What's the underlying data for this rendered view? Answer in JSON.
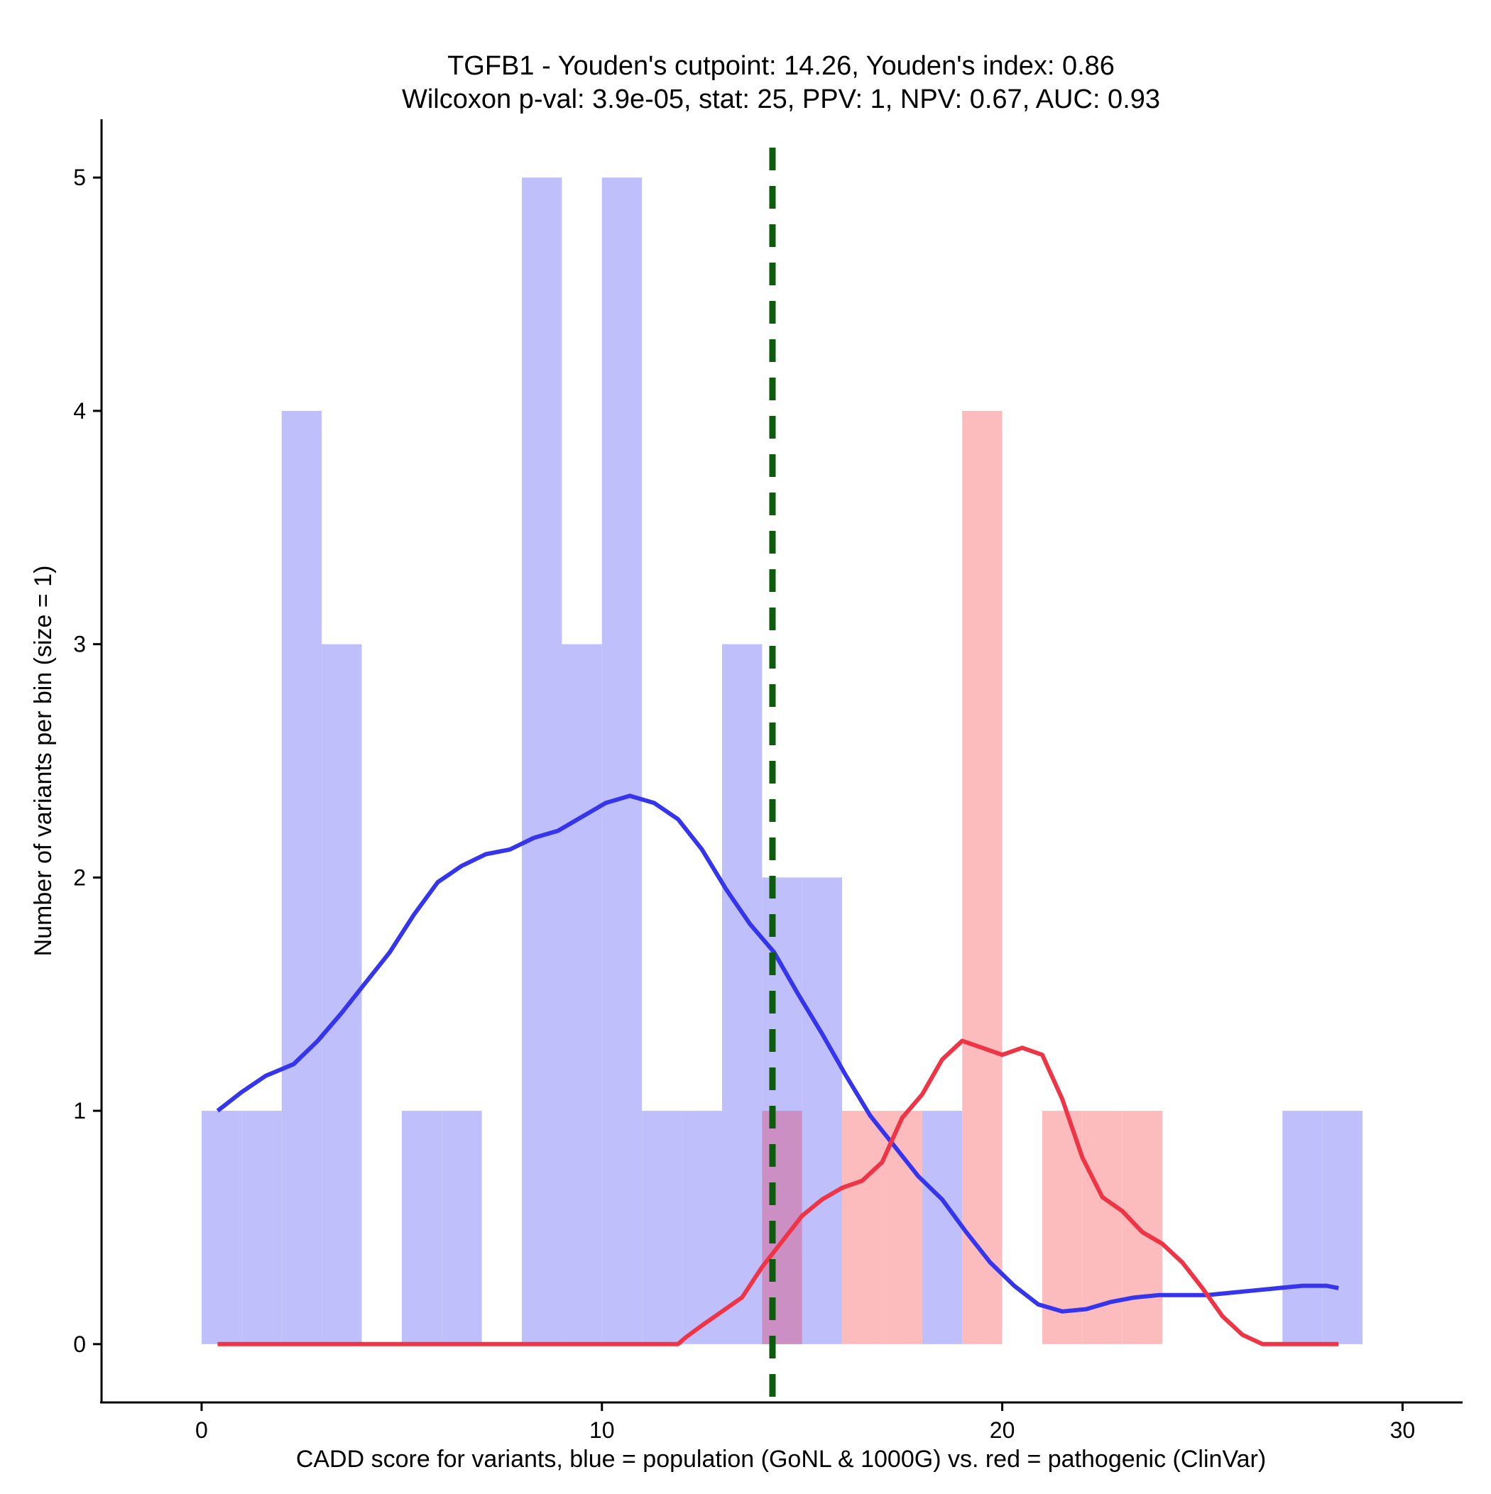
{
  "chart_data": {
    "type": "histogram",
    "title_lines": [
      "TGFB1 - Youden's cutpoint: 14.26, Youden's index: 0.86",
      "Wilcoxon p-val: 3.9e-05, stat: 25, PPV: 1, NPV: 0.67, AUC: 0.93"
    ],
    "xlabel": "CADD score for variants, blue = population (GoNL & 1000G) vs. red = pathogenic (ClinVar)",
    "ylabel": "Number of variants per bin (size = 1)",
    "xlim": [
      -2.5,
      31.5
    ],
    "ylim": [
      -0.25,
      5.25
    ],
    "x_ticks": [
      0,
      10,
      20,
      30
    ],
    "y_ticks": [
      0,
      1,
      2,
      3,
      4,
      5
    ],
    "bin_width": 1,
    "cutpoint": 14.26,
    "colors": {
      "population_bar": "#bfbffb",
      "pathogenic_bar": "#fcbcbe",
      "overlap_bar": "#cc8fc4",
      "population_line": "#3535ee",
      "pathogenic_line": "#ef3545",
      "cutpoint_line": "#0d5c0d"
    },
    "series": [
      {
        "name": "population",
        "bins": [
          {
            "start": 0,
            "count": 1
          },
          {
            "start": 1,
            "count": 1
          },
          {
            "start": 2,
            "count": 4
          },
          {
            "start": 3,
            "count": 3
          },
          {
            "start": 5,
            "count": 1
          },
          {
            "start": 6,
            "count": 1
          },
          {
            "start": 8,
            "count": 5
          },
          {
            "start": 9,
            "count": 3
          },
          {
            "start": 10,
            "count": 5
          },
          {
            "start": 11,
            "count": 1
          },
          {
            "start": 12,
            "count": 1
          },
          {
            "start": 13,
            "count": 3
          },
          {
            "start": 14,
            "count": 2
          },
          {
            "start": 15,
            "count": 2
          },
          {
            "start": 18,
            "count": 1
          },
          {
            "start": 27,
            "count": 1
          },
          {
            "start": 28,
            "count": 1
          }
        ],
        "density": [
          [
            0.4,
            1.0
          ],
          [
            1.0,
            1.08
          ],
          [
            1.6,
            1.15
          ],
          [
            2.3,
            1.2
          ],
          [
            2.9,
            1.3
          ],
          [
            3.5,
            1.42
          ],
          [
            4.1,
            1.55
          ],
          [
            4.7,
            1.68
          ],
          [
            5.3,
            1.84
          ],
          [
            5.9,
            1.98
          ],
          [
            6.5,
            2.05
          ],
          [
            7.1,
            2.1
          ],
          [
            7.7,
            2.12
          ],
          [
            8.3,
            2.17
          ],
          [
            8.9,
            2.2
          ],
          [
            9.5,
            2.26
          ],
          [
            10.1,
            2.32
          ],
          [
            10.7,
            2.35
          ],
          [
            11.3,
            2.32
          ],
          [
            11.9,
            2.25
          ],
          [
            12.5,
            2.12
          ],
          [
            13.1,
            1.95
          ],
          [
            13.7,
            1.8
          ],
          [
            14.3,
            1.68
          ],
          [
            14.9,
            1.5
          ],
          [
            15.5,
            1.33
          ],
          [
            16.1,
            1.15
          ],
          [
            16.7,
            0.98
          ],
          [
            17.3,
            0.85
          ],
          [
            17.9,
            0.72
          ],
          [
            18.5,
            0.62
          ],
          [
            19.1,
            0.48
          ],
          [
            19.7,
            0.35
          ],
          [
            20.3,
            0.25
          ],
          [
            20.9,
            0.17
          ],
          [
            21.5,
            0.14
          ],
          [
            22.1,
            0.15
          ],
          [
            22.7,
            0.18
          ],
          [
            23.3,
            0.2
          ],
          [
            23.9,
            0.21
          ],
          [
            24.5,
            0.21
          ],
          [
            25.1,
            0.21
          ],
          [
            25.7,
            0.22
          ],
          [
            26.3,
            0.23
          ],
          [
            26.9,
            0.24
          ],
          [
            27.5,
            0.25
          ],
          [
            28.1,
            0.25
          ],
          [
            28.4,
            0.24
          ]
        ]
      },
      {
        "name": "pathogenic",
        "bins": [
          {
            "start": 14,
            "count": 1
          },
          {
            "start": 16,
            "count": 1
          },
          {
            "start": 17,
            "count": 1
          },
          {
            "start": 19,
            "count": 4
          },
          {
            "start": 21,
            "count": 1
          },
          {
            "start": 22,
            "count": 1
          },
          {
            "start": 23,
            "count": 1
          }
        ],
        "density": [
          [
            0.4,
            0.0
          ],
          [
            11.9,
            0.0
          ],
          [
            12.1,
            0.03
          ],
          [
            12.5,
            0.08
          ],
          [
            13.0,
            0.14
          ],
          [
            13.5,
            0.2
          ],
          [
            14.0,
            0.33
          ],
          [
            14.5,
            0.44
          ],
          [
            15.0,
            0.55
          ],
          [
            15.5,
            0.62
          ],
          [
            16.0,
            0.67
          ],
          [
            16.5,
            0.7
          ],
          [
            17.0,
            0.78
          ],
          [
            17.5,
            0.97
          ],
          [
            18.0,
            1.07
          ],
          [
            18.5,
            1.22
          ],
          [
            19.0,
            1.3
          ],
          [
            19.5,
            1.27
          ],
          [
            20.0,
            1.24
          ],
          [
            20.5,
            1.27
          ],
          [
            21.0,
            1.24
          ],
          [
            21.5,
            1.05
          ],
          [
            22.0,
            0.8
          ],
          [
            22.5,
            0.63
          ],
          [
            23.0,
            0.57
          ],
          [
            23.5,
            0.48
          ],
          [
            24.0,
            0.43
          ],
          [
            24.5,
            0.35
          ],
          [
            25.0,
            0.24
          ],
          [
            25.5,
            0.12
          ],
          [
            26.0,
            0.04
          ],
          [
            26.5,
            0.0
          ],
          [
            28.4,
            0.0
          ]
        ]
      }
    ]
  }
}
